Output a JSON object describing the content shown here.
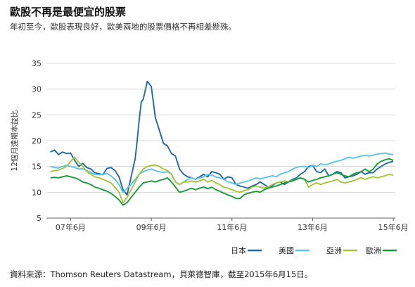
{
  "header": {
    "title": "歐股不再是最便宜的股票",
    "subtitle": "年初至今，歐股表現良好，歐美兩地的股票價格不再相差懸殊。"
  },
  "footer": {
    "source": "資料來源：Thomson Reuters Datastream，貝萊德智庫，截至2015年6月15日。"
  },
  "chart_data": {
    "type": "line",
    "title": "",
    "xlabel": "",
    "ylabel": "12個月遠期本益比",
    "ylim": [
      5,
      35
    ],
    "yticks": [
      5,
      10,
      15,
      20,
      25,
      30,
      35
    ],
    "xlim": [
      2006.9,
      2015.55
    ],
    "xticks": [
      {
        "x": 2007.5,
        "label": "07年6月"
      },
      {
        "x": 2009.5,
        "label": "09年6月"
      },
      {
        "x": 2011.5,
        "label": "11年6月"
      },
      {
        "x": 2013.5,
        "label": "13年6月"
      },
      {
        "x": 2015.5,
        "label": "15年6月"
      }
    ],
    "grid": "horizontal",
    "legend_position": "bottom-right",
    "series": [
      {
        "name": "日本",
        "color": "#1f6aa5",
        "x": [
          2007.0,
          2007.1,
          2007.2,
          2007.3,
          2007.4,
          2007.5,
          2007.6,
          2007.7,
          2007.8,
          2007.9,
          2008.0,
          2008.1,
          2008.2,
          2008.3,
          2008.4,
          2008.5,
          2008.6,
          2008.7,
          2008.8,
          2008.9,
          2009.0,
          2009.1,
          2009.15,
          2009.2,
          2009.25,
          2009.3,
          2009.4,
          2009.5,
          2009.6,
          2009.7,
          2009.8,
          2009.9,
          2010.0,
          2010.1,
          2010.2,
          2010.3,
          2010.4,
          2010.5,
          2010.6,
          2010.7,
          2010.8,
          2010.9,
          2011.0,
          2011.1,
          2011.2,
          2011.3,
          2011.4,
          2011.5,
          2011.6,
          2011.7,
          2011.8,
          2011.9,
          2012.0,
          2012.1,
          2012.2,
          2012.3,
          2012.4,
          2012.5,
          2012.6,
          2012.7,
          2012.8,
          2012.9,
          2013.0,
          2013.1,
          2013.2,
          2013.3,
          2013.4,
          2013.5,
          2013.6,
          2013.7,
          2013.8,
          2013.9,
          2014.0,
          2014.1,
          2014.2,
          2014.3,
          2014.4,
          2014.5,
          2014.6,
          2014.7,
          2014.8,
          2014.9,
          2015.0,
          2015.1,
          2015.2,
          2015.3,
          2015.4,
          2015.5
        ],
        "values": [
          17.8,
          18.2,
          17.3,
          17.8,
          17.5,
          17.6,
          16.2,
          15.0,
          15.6,
          14.8,
          14.5,
          13.8,
          13.6,
          13.4,
          14.6,
          14.8,
          14.2,
          13.0,
          10.5,
          9.5,
          13.0,
          16.5,
          20.0,
          24.0,
          27.5,
          28.0,
          31.5,
          30.5,
          24.5,
          22.0,
          19.5,
          19.0,
          17.5,
          17.0,
          14.5,
          13.5,
          13.0,
          12.8,
          12.5,
          13.0,
          13.5,
          13.0,
          14.0,
          13.8,
          13.5,
          12.5,
          13.0,
          12.8,
          11.5,
          11.2,
          11.0,
          10.8,
          11.2,
          11.5,
          12.0,
          11.5,
          11.0,
          11.3,
          11.8,
          12.0,
          11.5,
          12.0,
          12.5,
          12.8,
          13.5,
          14.0,
          15.0,
          15.2,
          14.0,
          13.8,
          14.5,
          13.2,
          13.5,
          14.0,
          13.8,
          12.8,
          13.0,
          13.2,
          13.5,
          14.0,
          13.5,
          13.8,
          13.8,
          14.5,
          15.0,
          15.5,
          15.8,
          16.0
        ]
      },
      {
        "name": "美國",
        "color": "#5ec3e8",
        "x": [
          2007.0,
          2007.1,
          2007.2,
          2007.3,
          2007.4,
          2007.5,
          2007.6,
          2007.7,
          2007.8,
          2007.9,
          2008.0,
          2008.1,
          2008.2,
          2008.3,
          2008.4,
          2008.5,
          2008.6,
          2008.7,
          2008.8,
          2008.9,
          2009.0,
          2009.1,
          2009.2,
          2009.3,
          2009.4,
          2009.5,
          2009.6,
          2009.7,
          2009.8,
          2009.9,
          2010.0,
          2010.1,
          2010.2,
          2010.3,
          2010.4,
          2010.5,
          2010.6,
          2010.7,
          2010.8,
          2010.9,
          2011.0,
          2011.1,
          2011.2,
          2011.3,
          2011.4,
          2011.5,
          2011.6,
          2011.7,
          2011.8,
          2011.9,
          2012.0,
          2012.1,
          2012.2,
          2012.3,
          2012.4,
          2012.5,
          2012.6,
          2012.7,
          2012.8,
          2012.9,
          2013.0,
          2013.1,
          2013.2,
          2013.3,
          2013.4,
          2013.5,
          2013.6,
          2013.7,
          2013.8,
          2013.9,
          2014.0,
          2014.1,
          2014.2,
          2014.3,
          2014.4,
          2014.5,
          2014.6,
          2014.7,
          2014.8,
          2014.9,
          2015.0,
          2015.1,
          2015.2,
          2015.3,
          2015.4,
          2015.5
        ],
        "values": [
          15.0,
          14.8,
          14.7,
          15.0,
          15.2,
          15.0,
          14.8,
          14.5,
          14.6,
          14.2,
          13.8,
          13.5,
          13.4,
          13.5,
          13.6,
          13.2,
          12.5,
          11.5,
          10.0,
          10.8,
          11.5,
          12.5,
          13.5,
          14.0,
          14.3,
          14.5,
          14.2,
          14.0,
          13.8,
          14.0,
          13.5,
          12.0,
          11.5,
          12.0,
          12.5,
          12.8,
          12.5,
          12.8,
          13.0,
          13.5,
          13.3,
          13.0,
          12.8,
          12.5,
          12.0,
          11.8,
          11.5,
          11.8,
          12.0,
          12.2,
          12.5,
          12.8,
          12.6,
          12.8,
          13.0,
          13.2,
          13.0,
          13.5,
          13.8,
          14.0,
          14.5,
          14.8,
          15.0,
          15.0,
          14.8,
          15.2,
          15.0,
          15.5,
          15.3,
          15.5,
          15.8,
          16.0,
          16.2,
          16.5,
          16.8,
          16.6,
          16.8,
          17.0,
          17.2,
          17.0,
          17.2,
          17.4,
          17.5,
          17.6,
          17.4,
          17.3
        ]
      },
      {
        "name": "亞洲",
        "color": "#a6c43a",
        "x": [
          2007.0,
          2007.1,
          2007.2,
          2007.3,
          2007.4,
          2007.5,
          2007.6,
          2007.7,
          2007.8,
          2007.9,
          2008.0,
          2008.1,
          2008.2,
          2008.3,
          2008.4,
          2008.5,
          2008.6,
          2008.7,
          2008.8,
          2008.9,
          2009.0,
          2009.1,
          2009.2,
          2009.3,
          2009.4,
          2009.5,
          2009.6,
          2009.7,
          2009.8,
          2009.9,
          2010.0,
          2010.1,
          2010.2,
          2010.3,
          2010.4,
          2010.5,
          2010.6,
          2010.7,
          2010.8,
          2010.9,
          2011.0,
          2011.1,
          2011.2,
          2011.3,
          2011.4,
          2011.5,
          2011.6,
          2011.7,
          2011.8,
          2011.9,
          2012.0,
          2012.1,
          2012.2,
          2012.3,
          2012.4,
          2012.5,
          2012.6,
          2012.7,
          2012.8,
          2012.9,
          2013.0,
          2013.1,
          2013.2,
          2013.3,
          2013.4,
          2013.5,
          2013.6,
          2013.7,
          2013.8,
          2013.9,
          2014.0,
          2014.1,
          2014.2,
          2014.3,
          2014.4,
          2014.5,
          2014.6,
          2014.7,
          2014.8,
          2014.9,
          2015.0,
          2015.1,
          2015.2,
          2015.3,
          2015.4,
          2015.5
        ],
        "values": [
          14.0,
          14.2,
          14.3,
          14.6,
          15.0,
          16.0,
          16.8,
          15.8,
          15.0,
          14.0,
          13.5,
          13.0,
          12.8,
          12.5,
          12.2,
          11.8,
          11.0,
          10.0,
          8.0,
          9.0,
          10.5,
          12.0,
          13.5,
          14.5,
          15.0,
          15.2,
          15.3,
          15.0,
          14.5,
          14.2,
          13.5,
          12.0,
          11.5,
          12.0,
          12.0,
          12.2,
          12.0,
          12.2,
          12.5,
          12.0,
          12.3,
          11.8,
          11.5,
          11.0,
          10.8,
          10.5,
          10.2,
          10.0,
          10.3,
          10.5,
          11.0,
          11.2,
          11.0,
          10.8,
          11.0,
          11.5,
          11.8,
          12.0,
          12.2,
          12.0,
          12.3,
          12.5,
          12.8,
          12.5,
          11.0,
          11.5,
          11.8,
          11.5,
          11.8,
          12.0,
          12.2,
          12.5,
          12.0,
          11.8,
          12.0,
          12.2,
          12.5,
          12.8,
          12.5,
          12.8,
          13.0,
          12.8,
          13.0,
          13.2,
          13.5,
          13.3
        ]
      },
      {
        "name": "歐洲",
        "color": "#1e9a3c",
        "x": [
          2007.0,
          2007.1,
          2007.2,
          2007.3,
          2007.4,
          2007.5,
          2007.6,
          2007.7,
          2007.8,
          2007.9,
          2008.0,
          2008.1,
          2008.2,
          2008.3,
          2008.4,
          2008.5,
          2008.6,
          2008.7,
          2008.8,
          2008.9,
          2009.0,
          2009.1,
          2009.2,
          2009.3,
          2009.4,
          2009.5,
          2009.6,
          2009.7,
          2009.8,
          2009.9,
          2010.0,
          2010.1,
          2010.2,
          2010.3,
          2010.4,
          2010.5,
          2010.6,
          2010.7,
          2010.8,
          2010.9,
          2011.0,
          2011.1,
          2011.2,
          2011.3,
          2011.4,
          2011.5,
          2011.6,
          2011.7,
          2011.8,
          2011.9,
          2012.0,
          2012.1,
          2012.2,
          2012.3,
          2012.4,
          2012.5,
          2012.6,
          2012.7,
          2012.8,
          2012.9,
          2013.0,
          2013.1,
          2013.2,
          2013.3,
          2013.4,
          2013.5,
          2013.6,
          2013.7,
          2013.8,
          2013.9,
          2014.0,
          2014.1,
          2014.2,
          2014.3,
          2014.4,
          2014.5,
          2014.6,
          2014.7,
          2014.8,
          2014.9,
          2015.0,
          2015.1,
          2015.2,
          2015.3,
          2015.4,
          2015.5
        ],
        "values": [
          12.8,
          12.9,
          12.8,
          13.0,
          13.2,
          13.0,
          12.8,
          12.5,
          12.0,
          11.8,
          11.5,
          11.0,
          10.8,
          10.5,
          10.2,
          9.8,
          9.2,
          8.5,
          7.5,
          8.0,
          9.0,
          10.0,
          11.0,
          11.8,
          12.0,
          12.2,
          12.0,
          12.3,
          12.5,
          12.8,
          12.0,
          11.0,
          10.0,
          10.2,
          10.5,
          10.8,
          10.5,
          10.8,
          11.0,
          10.7,
          11.0,
          10.5,
          10.2,
          9.8,
          9.5,
          9.2,
          8.8,
          8.8,
          9.5,
          9.8,
          10.0,
          10.2,
          10.0,
          10.5,
          10.8,
          11.0,
          11.2,
          11.5,
          11.8,
          12.0,
          12.2,
          12.5,
          12.8,
          12.5,
          12.0,
          12.3,
          12.5,
          12.8,
          13.0,
          13.2,
          13.5,
          13.8,
          13.5,
          13.2,
          13.0,
          13.5,
          13.8,
          14.0,
          14.5,
          14.0,
          14.5,
          15.5,
          16.0,
          16.3,
          16.5,
          16.2
        ]
      }
    ]
  }
}
